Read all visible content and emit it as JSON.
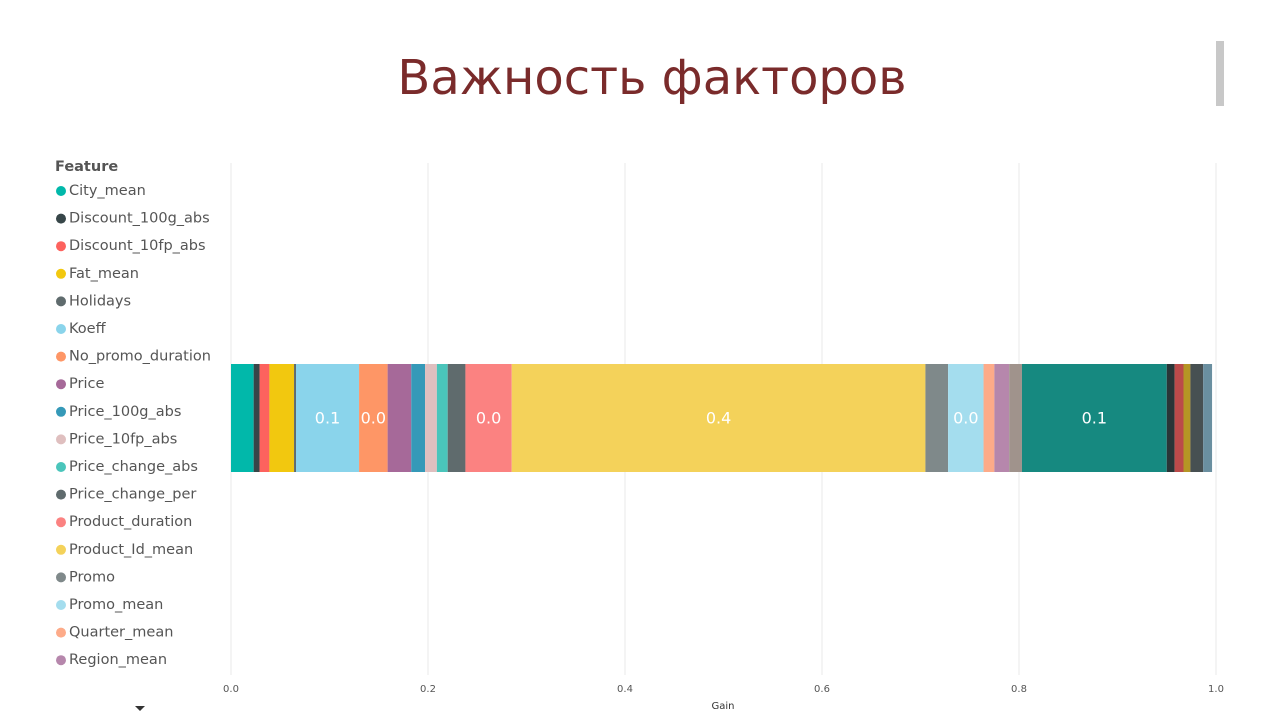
{
  "chart_data": {
    "type": "bar",
    "orientation": "horizontal",
    "stacked": true,
    "title": "Важность факторов",
    "legend_title": "Feature",
    "xlabel": "Gain",
    "categories": [
      null
    ],
    "xlim": [
      0,
      1
    ],
    "xticks": [
      {
        "value": 0,
        "label": "0.0"
      },
      0.2,
      0.4,
      0.6,
      0.8,
      {
        "value": 1,
        "label": "1.0"
      }
    ],
    "grid": true,
    "legend": "left",
    "series": [
      {
        "name": "City_mean",
        "color": "#01b8aa",
        "values": [
          0.023
        ]
      },
      {
        "name": "Discount_100g_abs",
        "color": "#374649",
        "values": [
          0.006
        ]
      },
      {
        "name": "Discount_10fp_abs",
        "color": "#fd625e",
        "values": [
          0.01
        ]
      },
      {
        "name": "Fat_mean",
        "color": "#f2c80f",
        "values": [
          0.025
        ]
      },
      {
        "name": "Holidays",
        "color": "#5f6b6d",
        "values": [
          0.002
        ]
      },
      {
        "name": "Koeff",
        "color": "#8ad4eb",
        "values": [
          0.064
        ],
        "value_labels": [
          "0.1"
        ]
      },
      {
        "name": "No_promo_duration",
        "color": "#fe9666",
        "values": [
          0.029
        ],
        "value_labels": [
          "0.0"
        ]
      },
      {
        "name": "Price",
        "color": "#a66999",
        "values": [
          0.024
        ]
      },
      {
        "name": "Price_100g_abs",
        "color": "#3599b8",
        "values": [
          0.014
        ]
      },
      {
        "name": "Price_10fp_abs",
        "color": "#dfbfbf",
        "values": [
          0.012
        ]
      },
      {
        "name": "Price_change_abs",
        "color": "#4ac5bb",
        "values": [
          0.011
        ]
      },
      {
        "name": "Price_change_per",
        "color": "#5f6b6d",
        "values": [
          0.018
        ]
      },
      {
        "name": "Product_duration",
        "color": "#fb8281",
        "values": [
          0.047
        ],
        "value_labels": [
          "0.0"
        ]
      },
      {
        "name": "Product_Id_mean",
        "color": "#f4d25a",
        "values": [
          0.42
        ],
        "value_labels": [
          "0.4"
        ]
      },
      {
        "name": "Promo",
        "color": "#7f898a",
        "values": [
          0.023
        ]
      },
      {
        "name": "Promo_mean",
        "color": "#a4ddee",
        "values": [
          0.036
        ],
        "value_labels": [
          "0.0"
        ]
      },
      {
        "name": "Quarter_mean",
        "color": "#fdab89",
        "values": [
          0.011
        ]
      },
      {
        "name": "Region_mean",
        "color": "#b687ac",
        "values": [
          0.015
        ]
      },
      {
        "color": "#a0938c",
        "values": [
          0.013
        ]
      },
      {
        "color": "#168980",
        "values": [
          0.147
        ],
        "value_labels": [
          "0.1"
        ]
      },
      {
        "color": "#293537",
        "values": [
          0.008
        ]
      },
      {
        "color": "#bb4a4a",
        "values": [
          0.009
        ]
      },
      {
        "color": "#b59525",
        "values": [
          0.007
        ]
      },
      {
        "color": "#475052",
        "values": [
          0.013
        ]
      },
      {
        "color": "#6a8fa0",
        "values": [
          0.009
        ]
      }
    ]
  }
}
